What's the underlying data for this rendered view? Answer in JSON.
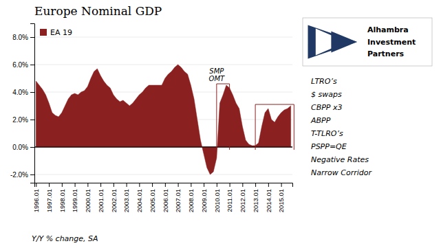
{
  "chart_data": {
    "type": "area",
    "title": "Europe Nominal GDP",
    "ylabel": "Y/Y % change, SA",
    "categories": [
      "1996.01",
      null,
      null,
      null,
      "1997.01",
      null,
      null,
      null,
      "1998.01",
      null,
      null,
      null,
      "1999.01",
      null,
      null,
      null,
      "2000.01",
      null,
      null,
      null,
      "2001.01",
      null,
      null,
      null,
      "2002.01",
      null,
      null,
      null,
      "2003.01",
      null,
      null,
      null,
      "2004.01",
      null,
      null,
      null,
      "2005.01",
      null,
      null,
      null,
      "2006.01",
      null,
      null,
      null,
      "2007.01",
      null,
      null,
      null,
      "2008.01",
      null,
      null,
      null,
      "2009.01",
      null,
      null,
      null,
      "2010.01",
      null,
      null,
      null,
      "2011.01",
      null,
      null,
      null,
      "2012.01",
      null,
      null,
      null,
      "2013.01",
      null,
      null,
      null,
      "2014.01",
      null,
      null,
      null,
      "2015.01",
      null,
      null,
      null
    ],
    "series": [
      {
        "name": "EA 19",
        "color": "#8B2020",
        "values": [
          0.048,
          0.045,
          0.042,
          0.038,
          0.032,
          0.025,
          0.023,
          0.022,
          0.025,
          0.03,
          0.035,
          0.038,
          0.039,
          0.038,
          0.04,
          0.041,
          0.044,
          0.05,
          0.055,
          0.057,
          0.052,
          0.048,
          0.045,
          0.043,
          0.038,
          0.035,
          0.033,
          0.034,
          0.032,
          0.03,
          0.032,
          0.035,
          0.038,
          0.04,
          0.043,
          0.045,
          0.045,
          0.045,
          0.045,
          0.045,
          0.05,
          0.053,
          0.055,
          0.058,
          0.06,
          0.058,
          0.055,
          0.053,
          0.045,
          0.035,
          0.02,
          0.005,
          -0.005,
          -0.015,
          -0.02,
          -0.018,
          -0.008,
          0.032,
          0.038,
          0.045,
          0.043,
          0.038,
          0.032,
          0.028,
          0.015,
          0.005,
          0.002,
          0.001,
          0.001,
          0.003,
          0.015,
          0.025,
          0.028,
          0.02,
          0.018,
          0.022,
          0.025,
          0.027,
          0.028,
          0.03
        ]
      }
    ],
    "ylim": [
      -0.026,
      0.09
    ],
    "yticks": [
      {
        "value": -0.02,
        "label": "-2.0%"
      },
      {
        "value": 0.0,
        "label": "0.0%"
      },
      {
        "value": 0.02,
        "label": "2.0%"
      },
      {
        "value": 0.04,
        "label": "4.0%"
      },
      {
        "value": 0.06,
        "label": "6.0%"
      },
      {
        "value": 0.08,
        "label": "8.0%"
      }
    ],
    "grid": true,
    "legend": "upper left",
    "brackets": [
      {
        "text": [
          "SMP",
          "OMT"
        ],
        "x": [
          56,
          60
        ],
        "y": [
          -0.002,
          0.046
        ]
      },
      {
        "x": [
          68,
          80
        ],
        "y": [
          -0.002,
          0.031
        ]
      }
    ],
    "annotations": [
      "LTRO’s",
      "$ swaps",
      "CBPP x3",
      "ABPP",
      "T-TLRO’s",
      "PSPP=QE",
      "Negative Rates",
      "Narrow Corridor"
    ],
    "logo_text": [
      "Alhambra",
      "Investment",
      "Partners"
    ]
  }
}
